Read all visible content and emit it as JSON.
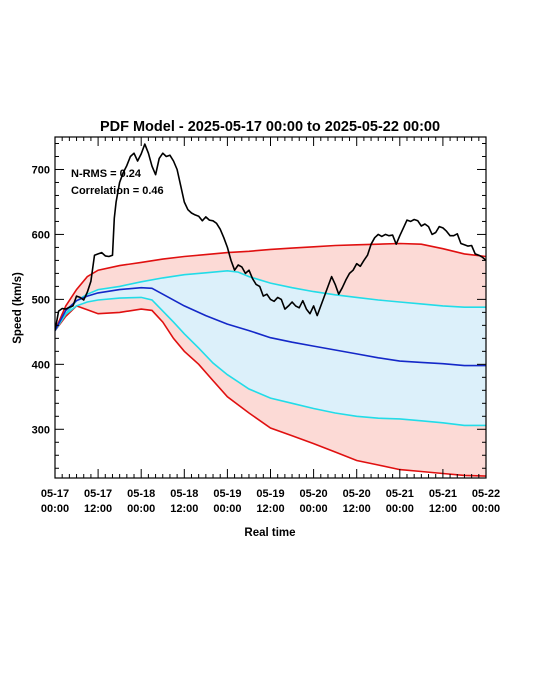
{
  "chart_data": {
    "type": "line",
    "title": "PDF Model - 2025-05-17 00:00 to 2025-05-22 00:00",
    "xlabel": "Real time",
    "ylabel": "Speed (km/s)",
    "x_unit": "hours",
    "xlim": [
      0,
      120
    ],
    "ylim": [
      225,
      750
    ],
    "x_ticks": [
      {
        "x": 0,
        "line1": "05-17",
        "line2": "00:00"
      },
      {
        "x": 12,
        "line1": "05-17",
        "line2": "12:00"
      },
      {
        "x": 24,
        "line1": "05-18",
        "line2": "00:00"
      },
      {
        "x": 36,
        "line1": "05-18",
        "line2": "12:00"
      },
      {
        "x": 48,
        "line1": "05-19",
        "line2": "00:00"
      },
      {
        "x": 60,
        "line1": "05-19",
        "line2": "12:00"
      },
      {
        "x": 72,
        "line1": "05-20",
        "line2": "00:00"
      },
      {
        "x": 84,
        "line1": "05-20",
        "line2": "12:00"
      },
      {
        "x": 96,
        "line1": "05-21",
        "line2": "00:00"
      },
      {
        "x": 108,
        "line1": "05-21",
        "line2": "12:00"
      },
      {
        "x": 120,
        "line1": "05-22",
        "line2": "00:00"
      }
    ],
    "y_ticks": [
      300,
      400,
      500,
      600,
      700
    ],
    "annotations": [
      "N-RMS = 0.24",
      "Correlation = 0.46"
    ],
    "bands": [
      {
        "fill": "#fcdad6",
        "edge": "#e01010",
        "upper": [
          [
            0,
            452
          ],
          [
            3,
            490
          ],
          [
            6,
            515
          ],
          [
            9,
            535
          ],
          [
            12,
            545
          ],
          [
            18,
            552
          ],
          [
            24,
            557
          ],
          [
            30,
            562
          ],
          [
            36,
            566
          ],
          [
            42,
            569
          ],
          [
            48,
            572
          ],
          [
            54,
            574
          ],
          [
            60,
            577
          ],
          [
            66,
            579
          ],
          [
            72,
            581
          ],
          [
            78,
            583
          ],
          [
            84,
            584
          ],
          [
            90,
            585
          ],
          [
            96,
            586
          ],
          [
            102,
            585
          ],
          [
            108,
            578
          ],
          [
            114,
            570
          ],
          [
            120,
            566
          ]
        ],
        "lower": [
          [
            0,
            452
          ],
          [
            3,
            474
          ],
          [
            6,
            490
          ],
          [
            9,
            484
          ],
          [
            12,
            478
          ],
          [
            18,
            480
          ],
          [
            24,
            485
          ],
          [
            27,
            483
          ],
          [
            30,
            465
          ],
          [
            33,
            440
          ],
          [
            36,
            420
          ],
          [
            40,
            400
          ],
          [
            44,
            375
          ],
          [
            48,
            350
          ],
          [
            54,
            325
          ],
          [
            60,
            302
          ],
          [
            66,
            290
          ],
          [
            72,
            278
          ],
          [
            78,
            265
          ],
          [
            84,
            252
          ],
          [
            90,
            245
          ],
          [
            96,
            238
          ],
          [
            102,
            235
          ],
          [
            108,
            232
          ],
          [
            114,
            229
          ],
          [
            120,
            228
          ]
        ]
      },
      {
        "fill": "#dcf0fa",
        "edge": "#22dce8",
        "upper": [
          [
            0,
            452
          ],
          [
            3,
            478
          ],
          [
            6,
            498
          ],
          [
            9,
            508
          ],
          [
            12,
            515
          ],
          [
            18,
            520
          ],
          [
            24,
            527
          ],
          [
            30,
            533
          ],
          [
            36,
            538
          ],
          [
            42,
            541
          ],
          [
            48,
            544
          ],
          [
            51,
            542
          ],
          [
            54,
            535
          ],
          [
            60,
            525
          ],
          [
            66,
            518
          ],
          [
            72,
            512
          ],
          [
            78,
            507
          ],
          [
            84,
            503
          ],
          [
            90,
            499
          ],
          [
            96,
            496
          ],
          [
            102,
            493
          ],
          [
            108,
            490
          ],
          [
            114,
            488
          ],
          [
            120,
            488
          ]
        ],
        "lower": [
          [
            0,
            452
          ],
          [
            3,
            477
          ],
          [
            6,
            490
          ],
          [
            9,
            496
          ],
          [
            12,
            499
          ],
          [
            18,
            502
          ],
          [
            24,
            503
          ],
          [
            27,
            499
          ],
          [
            30,
            482
          ],
          [
            33,
            465
          ],
          [
            36,
            447
          ],
          [
            40,
            425
          ],
          [
            44,
            402
          ],
          [
            48,
            384
          ],
          [
            54,
            362
          ],
          [
            60,
            348
          ],
          [
            66,
            340
          ],
          [
            72,
            332
          ],
          [
            78,
            325
          ],
          [
            84,
            320
          ],
          [
            90,
            317
          ],
          [
            96,
            316
          ],
          [
            102,
            313
          ],
          [
            108,
            310
          ],
          [
            114,
            306
          ],
          [
            120,
            306
          ]
        ]
      }
    ],
    "series": [
      {
        "color": "#1428c8",
        "points": [
          [
            0,
            452
          ],
          [
            3,
            483
          ],
          [
            6,
            498
          ],
          [
            9,
            505
          ],
          [
            12,
            510
          ],
          [
            18,
            515
          ],
          [
            24,
            518
          ],
          [
            27,
            517
          ],
          [
            30,
            508
          ],
          [
            36,
            490
          ],
          [
            42,
            475
          ],
          [
            48,
            462
          ],
          [
            54,
            452
          ],
          [
            60,
            441
          ],
          [
            66,
            434
          ],
          [
            72,
            428
          ],
          [
            78,
            422
          ],
          [
            84,
            416
          ],
          [
            90,
            410
          ],
          [
            96,
            405
          ],
          [
            102,
            403
          ],
          [
            108,
            401
          ],
          [
            114,
            398
          ],
          [
            120,
            398
          ]
        ]
      },
      {
        "color": "#000000",
        "points": [
          [
            0,
            452
          ],
          [
            1,
            482
          ],
          [
            2,
            486
          ],
          [
            3,
            485
          ],
          [
            4,
            488
          ],
          [
            5,
            490
          ],
          [
            6,
            505
          ],
          [
            7,
            503
          ],
          [
            8,
            499
          ],
          [
            9,
            511
          ],
          [
            10,
            528
          ],
          [
            11,
            568
          ],
          [
            12,
            570
          ],
          [
            13,
            572
          ],
          [
            14,
            567
          ],
          [
            15,
            566
          ],
          [
            16,
            568
          ],
          [
            16.5,
            625
          ],
          [
            17,
            650
          ],
          [
            18,
            680
          ],
          [
            19,
            695
          ],
          [
            20,
            706
          ],
          [
            21,
            720
          ],
          [
            22,
            725
          ],
          [
            23,
            713
          ],
          [
            24,
            724
          ],
          [
            25,
            739
          ],
          [
            26,
            725
          ],
          [
            27,
            705
          ],
          [
            28,
            692
          ],
          [
            29,
            717
          ],
          [
            30,
            725
          ],
          [
            31,
            720
          ],
          [
            32,
            722
          ],
          [
            33,
            713
          ],
          [
            34,
            700
          ],
          [
            35,
            675
          ],
          [
            36,
            650
          ],
          [
            37,
            638
          ],
          [
            38,
            633
          ],
          [
            39,
            630
          ],
          [
            40,
            628
          ],
          [
            41,
            621
          ],
          [
            42,
            627
          ],
          [
            43,
            622
          ],
          [
            44,
            621
          ],
          [
            45,
            617
          ],
          [
            46,
            608
          ],
          [
            47,
            595
          ],
          [
            48,
            580
          ],
          [
            49,
            560
          ],
          [
            50,
            545
          ],
          [
            51,
            553
          ],
          [
            52,
            550
          ],
          [
            53,
            540
          ],
          [
            54,
            545
          ],
          [
            55,
            532
          ],
          [
            56,
            523
          ],
          [
            57,
            520
          ],
          [
            58,
            505
          ],
          [
            59,
            508
          ],
          [
            60,
            500
          ],
          [
            61,
            497
          ],
          [
            62,
            503
          ],
          [
            63,
            500
          ],
          [
            64,
            485
          ],
          [
            65,
            490
          ],
          [
            66,
            496
          ],
          [
            67,
            490
          ],
          [
            68,
            487
          ],
          [
            69,
            498
          ],
          [
            70,
            485
          ],
          [
            71,
            478
          ],
          [
            72,
            490
          ],
          [
            73,
            475
          ],
          [
            74,
            490
          ],
          [
            75,
            505
          ],
          [
            76,
            520
          ],
          [
            77,
            535
          ],
          [
            78,
            523
          ],
          [
            79,
            508
          ],
          [
            80,
            518
          ],
          [
            81,
            530
          ],
          [
            82,
            540
          ],
          [
            83,
            545
          ],
          [
            84,
            555
          ],
          [
            85,
            551
          ],
          [
            86,
            560
          ],
          [
            87,
            568
          ],
          [
            88,
            585
          ],
          [
            89,
            595
          ],
          [
            90,
            600
          ],
          [
            91,
            597
          ],
          [
            92,
            600
          ],
          [
            93,
            598
          ],
          [
            94,
            599
          ],
          [
            95,
            585
          ],
          [
            96,
            598
          ],
          [
            97,
            610
          ],
          [
            98,
            622
          ],
          [
            99,
            620
          ],
          [
            100,
            623
          ],
          [
            101,
            621
          ],
          [
            102,
            613
          ],
          [
            103,
            616
          ],
          [
            104,
            612
          ],
          [
            105,
            600
          ],
          [
            106,
            603
          ],
          [
            107,
            612
          ],
          [
            108,
            610
          ],
          [
            109,
            605
          ],
          [
            110,
            598
          ],
          [
            111,
            598
          ],
          [
            112,
            601
          ],
          [
            113,
            586
          ],
          [
            114,
            584
          ],
          [
            115,
            582
          ],
          [
            116,
            583
          ],
          [
            117,
            570
          ],
          [
            118,
            568
          ],
          [
            119,
            565
          ],
          [
            120,
            560
          ]
        ]
      }
    ]
  }
}
